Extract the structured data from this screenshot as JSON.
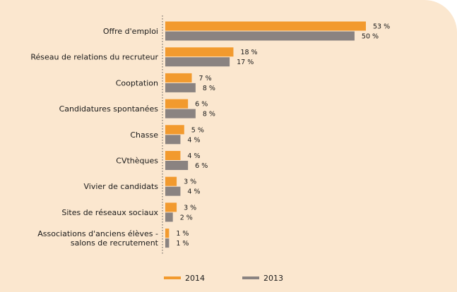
{
  "chart_data": {
    "type": "bar",
    "orientation": "horizontal",
    "categories": [
      [
        "Offre d'emploi"
      ],
      [
        "Réseau de relations du recruteur"
      ],
      [
        "Cooptation"
      ],
      [
        "Candidatures spontanées"
      ],
      [
        "Chasse"
      ],
      [
        "CVthèques"
      ],
      [
        "Vivier de candidats"
      ],
      [
        "Sites de réseaux sociaux"
      ],
      [
        "Associations d'anciens élèves -",
        "salons de recrutement"
      ]
    ],
    "series": [
      {
        "name": "2014",
        "color": "#f29a2e",
        "values": [
          53,
          18,
          7,
          6,
          5,
          4,
          3,
          3,
          1
        ]
      },
      {
        "name": "2013",
        "color": "#8a8381",
        "values": [
          50,
          17,
          8,
          8,
          4,
          6,
          4,
          2,
          1
        ]
      }
    ],
    "value_suffix": " %",
    "xlim": [
      0,
      53
    ],
    "legend_position": "bottom",
    "grid": false,
    "title": "",
    "xlabel": "",
    "ylabel": ""
  }
}
